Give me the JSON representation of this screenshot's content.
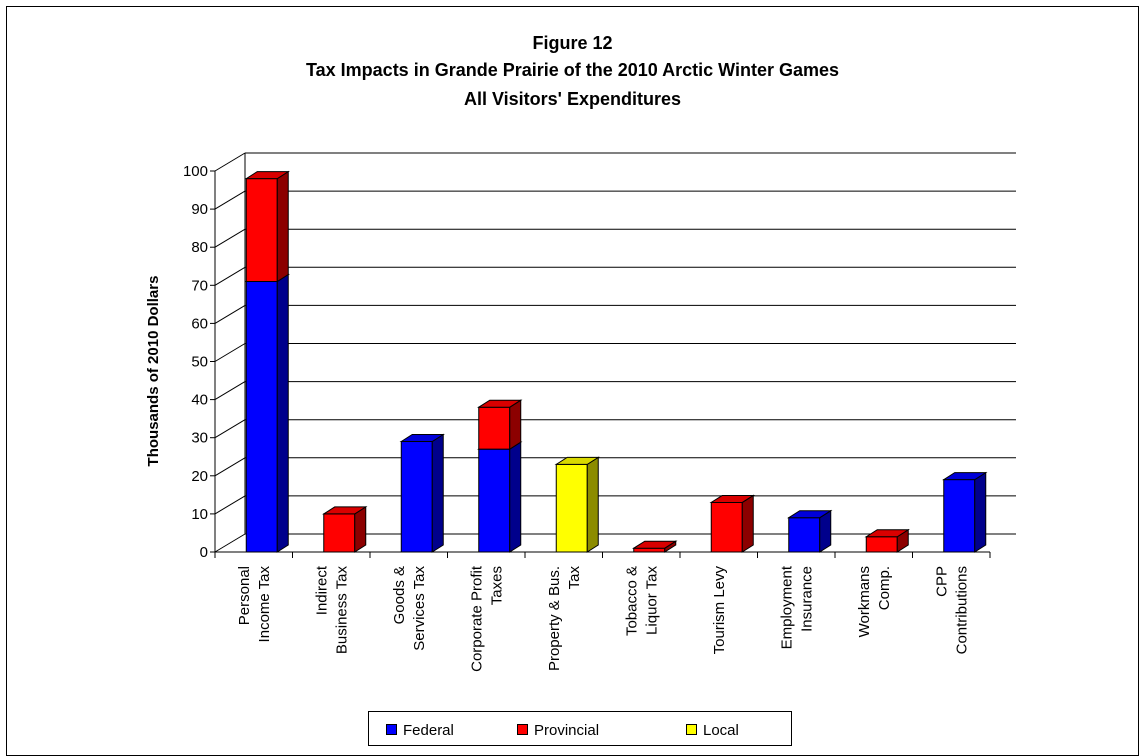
{
  "chart_data": {
    "type": "bar",
    "stacked": true,
    "three_d": true,
    "title": [
      "Figure 12",
      "Tax Impacts in Grande Prairie of the 2010 Arctic Winter Games",
      "All Visitors' Expenditures"
    ],
    "ylabel": "Thousands of 2010 Dollars",
    "xlabel": "",
    "ylim": [
      0,
      100
    ],
    "yticks": [
      0,
      10,
      20,
      30,
      40,
      50,
      60,
      70,
      80,
      90,
      100
    ],
    "grid": true,
    "legend_position": "bottom",
    "categories": [
      [
        "Personal",
        "Income Tax"
      ],
      [
        "Indirect",
        "Business Tax"
      ],
      [
        "Goods &",
        "Services Tax"
      ],
      [
        "Corporate Profit",
        "Taxes"
      ],
      [
        "Property & Bus.",
        "Tax"
      ],
      [
        "Tobacco &",
        "Liquor Tax"
      ],
      [
        "Tourism Levy"
      ],
      [
        "Employment",
        "Insurance"
      ],
      [
        "Workmans",
        "Comp."
      ],
      [
        "CPP",
        "Contributions"
      ]
    ],
    "series": [
      {
        "name": "Federal",
        "color": "#0000ff",
        "values": [
          71,
          0,
          29,
          27,
          0,
          0,
          0,
          9,
          0,
          19
        ]
      },
      {
        "name": "Provincial",
        "color": "#ff0000",
        "values": [
          27,
          10,
          0,
          11,
          0,
          1,
          13,
          0,
          4,
          0
        ]
      },
      {
        "name": "Local",
        "color": "#ffff00",
        "values": [
          0,
          0,
          0,
          0,
          23,
          0,
          0,
          0,
          0,
          0
        ]
      }
    ]
  }
}
